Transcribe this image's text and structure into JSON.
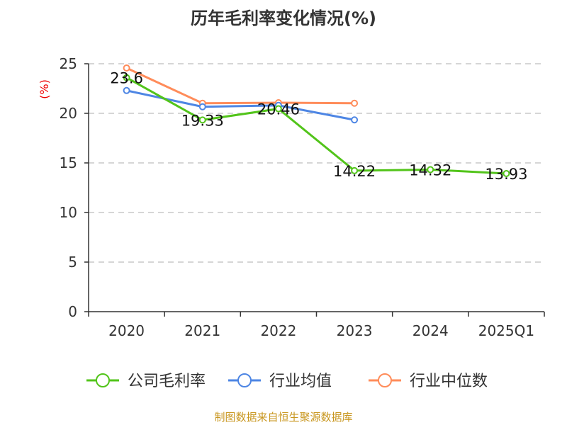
{
  "chart_data": {
    "type": "line",
    "title": "历年毛利率变化情况(%)",
    "ylabel": "(%)",
    "xlabel": "",
    "categories": [
      "2020",
      "2021",
      "2022",
      "2023",
      "2024",
      "2025Q1"
    ],
    "ylim": [
      0,
      25
    ],
    "yticks": [
      0,
      5,
      10,
      15,
      20,
      25
    ],
    "grid": true,
    "legend_position": "bottom",
    "series": [
      {
        "name": "公司毛利率",
        "color": "#52c41a",
        "values": [
          23.6,
          19.33,
          20.46,
          14.22,
          14.32,
          13.93
        ],
        "labels": [
          "23.6",
          "19.33",
          "20.46",
          "14.22",
          "14.32",
          "13.93"
        ]
      },
      {
        "name": "行业均值",
        "color": "#4e86e4",
        "values": [
          22.3,
          20.66,
          20.8,
          19.34,
          null,
          null
        ]
      },
      {
        "name": "行业中位数",
        "color": "#ff8c5a",
        "values": [
          24.57,
          21.02,
          21.07,
          21.02,
          null,
          null
        ]
      }
    ]
  },
  "footer": "制图数据来自恒生聚源数据库"
}
